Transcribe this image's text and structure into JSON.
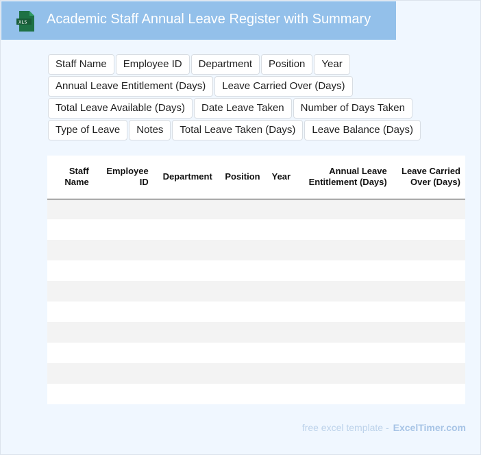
{
  "header": {
    "title": "Academic Staff Annual Leave Register with Summary",
    "icon": "xls-file-icon",
    "icon_label": "XLS"
  },
  "fields": [
    [
      "Staff Name",
      "Employee ID",
      "Department",
      "Position",
      "Year"
    ],
    [
      "Annual Leave Entitlement (Days)",
      "Leave Carried Over (Days)"
    ],
    [
      "Total Leave Available (Days)",
      "Date Leave Taken",
      "Number of Days Taken"
    ],
    [
      "Type of Leave",
      "Notes",
      "Total Leave Taken (Days)",
      "Leave Balance (Days)"
    ]
  ],
  "table": {
    "columns": [
      "Staff Name",
      "Employee ID",
      "Department",
      "Position",
      "Year",
      "Annual Leave Entitlement (Days)",
      "Leave Carried Over (Days)"
    ],
    "row_count": 10
  },
  "footer": {
    "text": "free excel template -",
    "brand": "ExcelTimer.com"
  },
  "colors": {
    "header_bg": "#93c0ea",
    "page_bg": "#f0f7ff",
    "icon_green": "#1e7145"
  }
}
